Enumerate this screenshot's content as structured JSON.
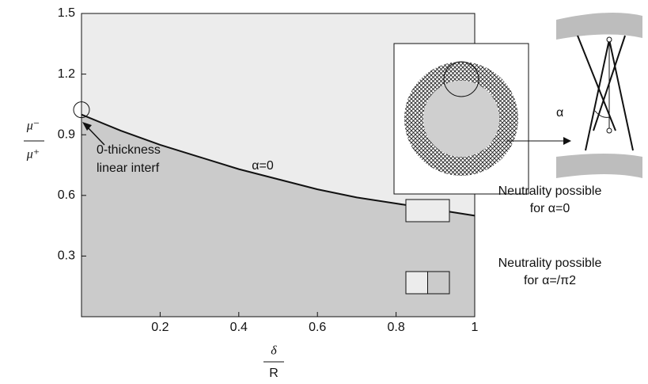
{
  "chart_data": {
    "type": "area",
    "x": [
      0,
      0.1,
      0.2,
      0.3,
      0.4,
      0.5,
      0.6,
      0.7,
      0.8,
      0.9,
      1
    ],
    "values": [
      1.0,
      0.92,
      0.85,
      0.79,
      0.73,
      0.68,
      0.63,
      0.59,
      0.56,
      0.53,
      0.5
    ],
    "above_color": "#ececec",
    "below_color": "#cbcbcb",
    "line_color": "#111111",
    "xlim": [
      0,
      1
    ],
    "xticks": [
      0.2,
      0.4,
      0.6,
      0.8,
      1
    ],
    "ylim": [
      0,
      1.5
    ],
    "yticks": [
      0.3,
      0.6,
      0.9,
      1.2,
      1.5
    ],
    "y_label": {
      "numerator": "μ⁻",
      "denominator": "μ⁺"
    },
    "x_label": {
      "numerator": "δ",
      "denominator": "R"
    },
    "annotations": {
      "curve": "α=0",
      "point": [
        "0-thickness",
        "linear  interf"
      ],
      "inset_angle": "α"
    },
    "legend": [
      {
        "lines": [
          "Neutrality possible",
          "for α=0"
        ],
        "colors": [
          "#ececec"
        ]
      },
      {
        "lines": [
          "Neutrality possible",
          "for α=/π2"
        ],
        "colors": [
          "#ececec",
          "#cbcbcb"
        ]
      }
    ]
  }
}
